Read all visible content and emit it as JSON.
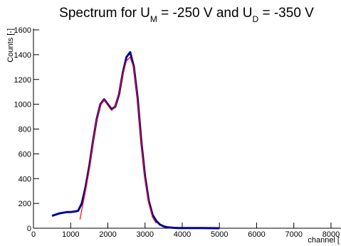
{
  "chart_data": {
    "type": "line",
    "title_parts": [
      {
        "text": "Spectrum for U"
      },
      {
        "text": "M",
        "sub": true
      },
      {
        "text": " = -250 V and U"
      },
      {
        "text": "D",
        "sub": true
      },
      {
        "text": " = -350 V"
      }
    ],
    "x_label": "channel [",
    "y_label": "Counts [-]",
    "xlim": [
      0,
      8192
    ],
    "ylim": [
      0,
      1600
    ],
    "xticks": [
      0,
      1000,
      2000,
      3000,
      4000,
      5000,
      6000,
      7000,
      8000
    ],
    "yticks": [
      0,
      200,
      400,
      600,
      800,
      1000,
      1200,
      1400,
      1600
    ],
    "series": [
      {
        "color": "#000099",
        "width": 3,
        "x": [
          500,
          600,
          700,
          800,
          900,
          1000,
          1100,
          1200,
          1300,
          1400,
          1500,
          1600,
          1700,
          1800,
          1900,
          2000,
          2100,
          2200,
          2300,
          2400,
          2500,
          2600,
          2700,
          2800,
          2900,
          3000,
          3100,
          3200,
          3300,
          3400,
          3500,
          3600,
          3700,
          3800,
          3900,
          4000,
          4500,
          5000
        ],
        "values": [
          100,
          110,
          120,
          125,
          130,
          130,
          135,
          140,
          200,
          330,
          500,
          700,
          880,
          1000,
          1040,
          1000,
          960,
          980,
          1080,
          1250,
          1380,
          1420,
          1300,
          1050,
          700,
          420,
          220,
          110,
          60,
          30,
          15,
          8,
          5,
          3,
          2,
          1,
          1,
          0
        ]
      },
      {
        "color": "#ff0000",
        "width": 1.2,
        "x": [
          1250,
          1300,
          1400,
          1500,
          1600,
          1700,
          1800,
          1900,
          2000,
          2100,
          2200,
          2300,
          2400,
          2500,
          2600,
          2700,
          2800,
          2900,
          3000,
          3100,
          3200,
          3300
        ],
        "values": [
          70,
          150,
          300,
          480,
          690,
          880,
          1000,
          1040,
          990,
          950,
          980,
          1090,
          1240,
          1350,
          1380,
          1290,
          1030,
          690,
          400,
          200,
          90,
          40
        ]
      }
    ]
  }
}
